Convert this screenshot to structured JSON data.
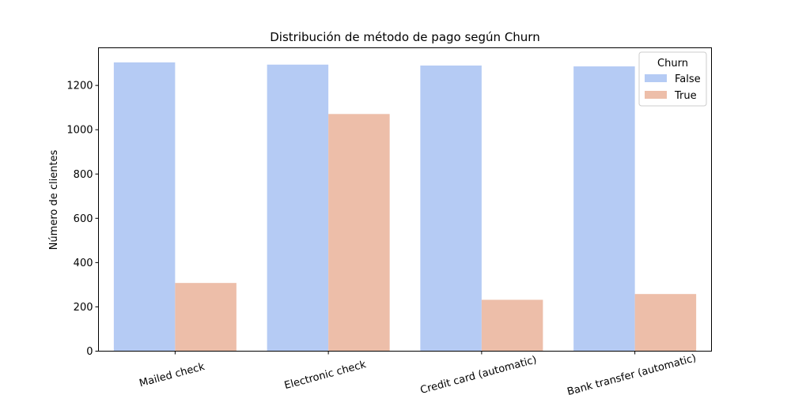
{
  "chart_data": {
    "type": "bar",
    "title": "Distribución de método de pago según Churn",
    "xlabel": "",
    "ylabel": "Número de clientes",
    "categories": [
      "Mailed check",
      "Electronic check",
      "Credit card (automatic)",
      "Bank transfer (automatic)"
    ],
    "series": [
      {
        "name": "False",
        "color": "#b5cbf4",
        "values": [
          1304,
          1294,
          1290,
          1286
        ]
      },
      {
        "name": "True",
        "color": "#edbea9",
        "values": [
          308,
          1071,
          232,
          258
        ]
      }
    ],
    "ylim": [
      0,
      1370
    ],
    "yticks": [
      0,
      200,
      400,
      600,
      800,
      1000,
      1200
    ],
    "legend": {
      "title": "Churn",
      "placement": "top-right"
    },
    "grid": false
  }
}
